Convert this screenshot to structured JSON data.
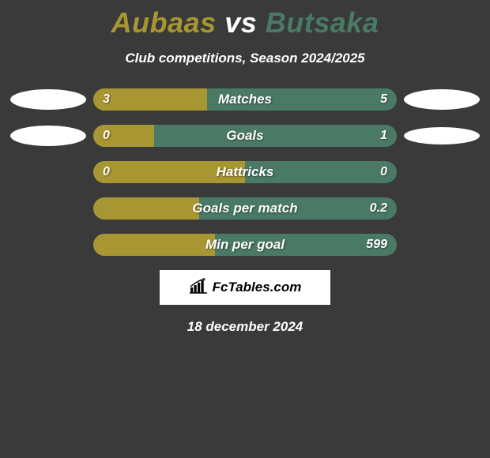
{
  "title": {
    "player1": "Aubaas",
    "vs": "vs",
    "player2": "Butsaka",
    "player1_color": "#a89632",
    "vs_color": "#ffffff",
    "player2_color": "#4a7a66"
  },
  "subtitle": "Club competitions, Season 2024/2025",
  "background_color": "#3a3a3a",
  "bar_track_color": "#4a7a66",
  "bar_track_color_alt": "#4a7a66",
  "left_fill_color": "#a89632",
  "stats": [
    {
      "label": "Matches",
      "left_value": "3",
      "right_value": "5",
      "left_pct": 37.5,
      "show_left_badge": true,
      "show_right_badge": true,
      "badge_right_h": 26
    },
    {
      "label": "Goals",
      "left_value": "0",
      "right_value": "1",
      "left_pct": 20,
      "show_left_badge": true,
      "show_right_badge": true,
      "badge_right_h": 22
    },
    {
      "label": "Hattricks",
      "left_value": "0",
      "right_value": "0",
      "left_pct": 50,
      "show_left_badge": false,
      "show_right_badge": false
    },
    {
      "label": "Goals per match",
      "left_value": "",
      "right_value": "0.2",
      "left_pct": 35,
      "show_left_badge": false,
      "show_right_badge": false
    },
    {
      "label": "Min per goal",
      "left_value": "",
      "right_value": "599",
      "left_pct": 40,
      "show_left_badge": false,
      "show_right_badge": false
    }
  ],
  "brand": "FcTables.com",
  "date": "18 december 2024"
}
